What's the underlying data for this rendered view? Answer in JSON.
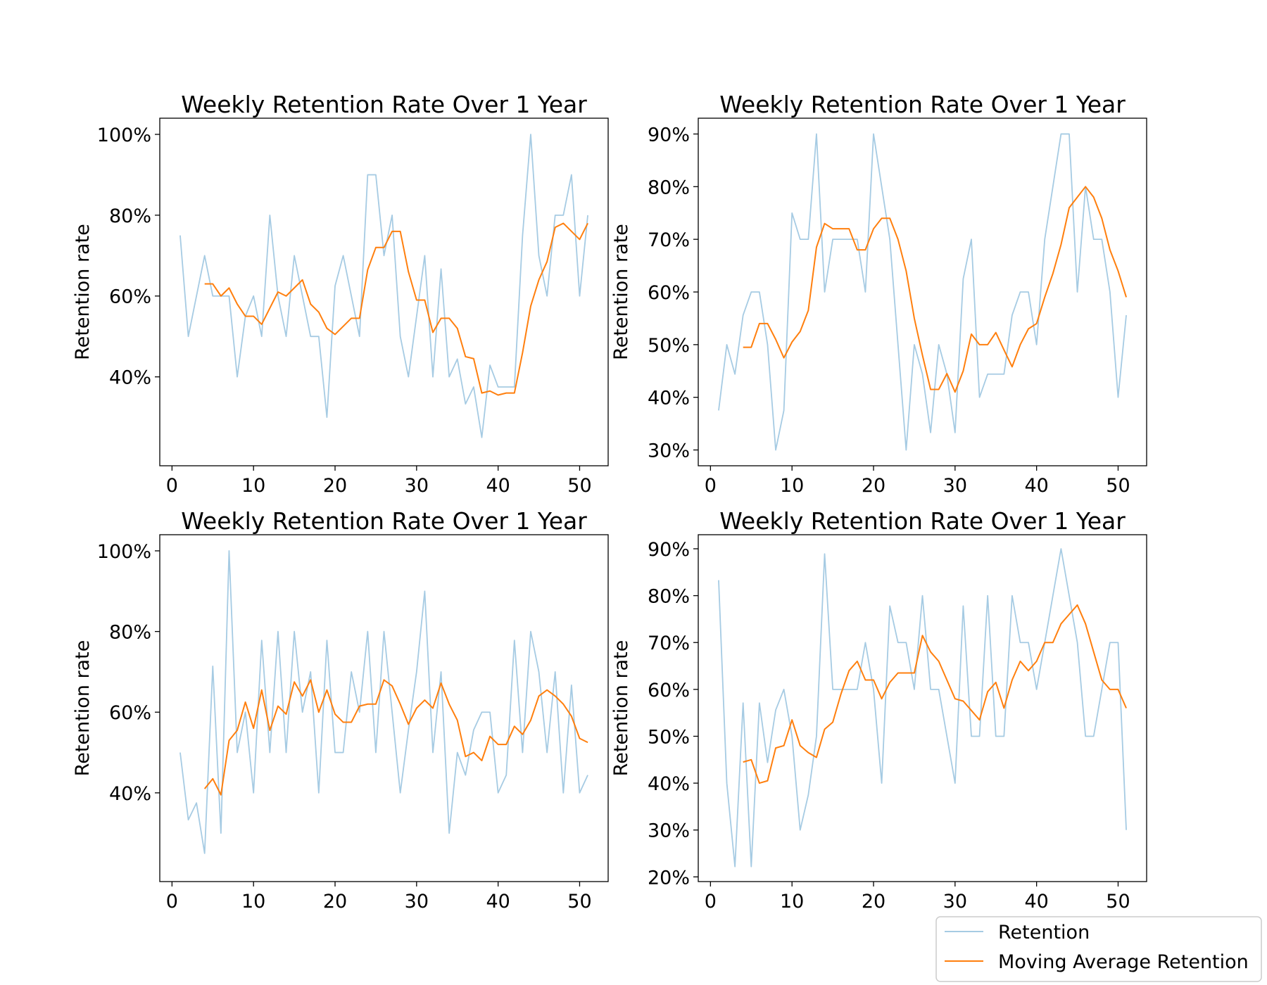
{
  "colors": {
    "retention": "#a6cbe3",
    "moving_average": "#ff7f0e",
    "axes": "#000000",
    "legend_border": "#cccccc"
  },
  "legend": {
    "placement": "lower-right",
    "entries": [
      "Retention",
      "Moving Average Retention"
    ]
  },
  "chart_data": [
    {
      "type": "line",
      "title": "Weekly Retention Rate Over 1 Year",
      "xlabel": "",
      "ylabel": "Retention rate",
      "xlim": [
        -1.5,
        53.5
      ],
      "ylim": [
        0.18,
        1.04
      ],
      "xticks": [
        0,
        10,
        20,
        30,
        40,
        50
      ],
      "yticks": [
        0.4,
        0.6,
        0.8,
        1.0
      ],
      "ytick_labels": [
        "40%",
        "60%",
        "80%",
        "100%"
      ],
      "grid": false,
      "x": [
        1,
        2,
        3,
        4,
        5,
        6,
        7,
        8,
        9,
        10,
        11,
        12,
        13,
        14,
        15,
        16,
        17,
        18,
        19,
        20,
        21,
        22,
        23,
        24,
        25,
        26,
        27,
        28,
        29,
        30,
        31,
        32,
        33,
        34,
        35,
        36,
        37,
        38,
        39,
        40,
        41,
        42,
        43,
        44,
        45,
        46,
        47,
        48,
        49,
        50,
        51
      ],
      "series": [
        {
          "name": "Retention",
          "values": [
            0.75,
            0.5,
            0.6,
            0.7,
            0.6,
            0.6,
            0.6,
            0.4,
            0.55,
            0.6,
            0.5,
            0.8,
            0.6,
            0.5,
            0.7,
            0.6,
            0.5,
            0.5,
            0.3,
            0.625,
            0.7,
            0.6,
            0.5,
            0.9,
            0.9,
            0.7,
            0.8,
            0.5,
            0.4,
            0.55,
            0.7,
            0.4,
            0.667,
            0.4,
            0.444,
            0.333,
            0.375,
            0.25,
            0.429,
            0.375,
            0.375,
            0.375,
            0.75,
            1.0,
            0.7,
            0.6,
            0.8,
            0.8,
            0.9,
            0.6,
            0.8
          ]
        },
        {
          "name": "Moving Average Retention",
          "values": [
            null,
            null,
            null,
            0.63,
            0.63,
            0.6,
            0.62,
            0.58,
            0.55,
            0.55,
            0.53,
            0.57,
            0.61,
            0.6,
            0.62,
            0.64,
            0.58,
            0.56,
            0.52,
            0.505,
            0.525,
            0.545,
            0.545,
            0.665,
            0.72,
            0.72,
            0.76,
            0.76,
            0.66,
            0.59,
            0.59,
            0.51,
            0.545,
            0.545,
            0.52,
            0.45,
            0.445,
            0.36,
            0.365,
            0.355,
            0.36,
            0.36,
            0.46,
            0.575,
            0.64,
            0.685,
            0.77,
            0.78,
            0.76,
            0.74,
            0.78
          ]
        }
      ]
    },
    {
      "type": "line",
      "title": "Weekly Retention Rate Over 1 Year",
      "xlabel": "",
      "ylabel": "Retention rate",
      "xlim": [
        -1.5,
        53.5
      ],
      "ylim": [
        0.27,
        0.93
      ],
      "xticks": [
        0,
        10,
        20,
        30,
        40,
        50
      ],
      "yticks": [
        0.3,
        0.4,
        0.5,
        0.6,
        0.7,
        0.8,
        0.9
      ],
      "ytick_labels": [
        "30%",
        "40%",
        "50%",
        "60%",
        "70%",
        "80%",
        "90%"
      ],
      "grid": false,
      "x": [
        1,
        2,
        3,
        4,
        5,
        6,
        7,
        8,
        9,
        10,
        11,
        12,
        13,
        14,
        15,
        16,
        17,
        18,
        19,
        20,
        21,
        22,
        23,
        24,
        25,
        26,
        27,
        28,
        29,
        30,
        31,
        32,
        33,
        34,
        35,
        36,
        37,
        38,
        39,
        40,
        41,
        42,
        43,
        44,
        45,
        46,
        47,
        48,
        49,
        50,
        51
      ],
      "series": [
        {
          "name": "Retention",
          "values": [
            0.375,
            0.5,
            0.444,
            0.556,
            0.6,
            0.6,
            0.5,
            0.3,
            0.375,
            0.75,
            0.7,
            0.7,
            0.9,
            0.6,
            0.7,
            0.7,
            0.7,
            0.7,
            0.6,
            0.9,
            0.8,
            0.7,
            0.5,
            0.3,
            0.5,
            0.444,
            0.333,
            0.5,
            0.444,
            0.333,
            0.625,
            0.7,
            0.4,
            0.444,
            0.444,
            0.444,
            0.556,
            0.6,
            0.6,
            0.5,
            0.7,
            0.8,
            0.9,
            0.9,
            0.6,
            0.8,
            0.7,
            0.7,
            0.6,
            0.4,
            0.556
          ]
        },
        {
          "name": "Moving Average Retention",
          "values": [
            null,
            null,
            null,
            0.495,
            0.495,
            0.54,
            0.54,
            0.51,
            0.475,
            0.505,
            0.525,
            0.565,
            0.685,
            0.73,
            0.72,
            0.72,
            0.72,
            0.68,
            0.68,
            0.72,
            0.74,
            0.74,
            0.7,
            0.64,
            0.55,
            0.48,
            0.415,
            0.415,
            0.445,
            0.41,
            0.45,
            0.52,
            0.5,
            0.5,
            0.523,
            0.49,
            0.458,
            0.5,
            0.53,
            0.54,
            0.59,
            0.635,
            0.69,
            0.76,
            0.78,
            0.8,
            0.78,
            0.74,
            0.68,
            0.64,
            0.59
          ]
        }
      ]
    },
    {
      "type": "line",
      "title": "Weekly Retention Rate Over 1 Year",
      "xlabel": "",
      "ylabel": "Retention rate",
      "xlim": [
        -1.5,
        53.5
      ],
      "ylim": [
        0.18,
        1.04
      ],
      "xticks": [
        0,
        10,
        20,
        30,
        40,
        50
      ],
      "yticks": [
        0.4,
        0.6,
        0.8,
        1.0
      ],
      "ytick_labels": [
        "40%",
        "60%",
        "80%",
        "100%"
      ],
      "grid": false,
      "x": [
        1,
        2,
        3,
        4,
        5,
        6,
        7,
        8,
        9,
        10,
        11,
        12,
        13,
        14,
        15,
        16,
        17,
        18,
        19,
        20,
        21,
        22,
        23,
        24,
        25,
        26,
        27,
        28,
        29,
        30,
        31,
        32,
        33,
        34,
        35,
        36,
        37,
        38,
        39,
        40,
        41,
        42,
        43,
        44,
        45,
        46,
        47,
        48,
        49,
        50,
        51
      ],
      "series": [
        {
          "name": "Retention",
          "values": [
            0.5,
            0.333,
            0.375,
            0.25,
            0.714,
            0.3,
            1.0,
            0.5,
            0.6,
            0.4,
            0.778,
            0.5,
            0.8,
            0.5,
            0.8,
            0.6,
            0.7,
            0.4,
            0.778,
            0.5,
            0.5,
            0.7,
            0.6,
            0.8,
            0.5,
            0.8,
            0.6,
            0.4,
            0.556,
            0.7,
            0.9,
            0.5,
            0.7,
            0.3,
            0.5,
            0.444,
            0.556,
            0.6,
            0.6,
            0.4,
            0.444,
            0.778,
            0.5,
            0.8,
            0.7,
            0.5,
            0.7,
            0.4,
            0.667,
            0.4,
            0.444
          ]
        },
        {
          "name": "Moving Average Retention",
          "values": [
            null,
            null,
            null,
            0.41,
            0.435,
            0.395,
            0.53,
            0.555,
            0.625,
            0.56,
            0.655,
            0.555,
            0.615,
            0.595,
            0.675,
            0.64,
            0.68,
            0.6,
            0.655,
            0.595,
            0.575,
            0.575,
            0.615,
            0.62,
            0.62,
            0.68,
            0.665,
            0.62,
            0.57,
            0.61,
            0.63,
            0.61,
            0.672,
            0.62,
            0.58,
            0.49,
            0.5,
            0.48,
            0.54,
            0.52,
            0.52,
            0.565,
            0.545,
            0.58,
            0.64,
            0.655,
            0.64,
            0.62,
            0.59,
            0.535,
            0.525
          ]
        }
      ]
    },
    {
      "type": "line",
      "title": "Weekly Retention Rate Over 1 Year",
      "xlabel": "",
      "ylabel": "Retention rate",
      "xlim": [
        -1.5,
        53.5
      ],
      "ylim": [
        0.19,
        0.93
      ],
      "xticks": [
        0,
        10,
        20,
        30,
        40,
        50
      ],
      "yticks": [
        0.2,
        0.3,
        0.4,
        0.5,
        0.6,
        0.7,
        0.8,
        0.9
      ],
      "ytick_labels": [
        "20%",
        "30%",
        "40%",
        "50%",
        "60%",
        "70%",
        "80%",
        "90%"
      ],
      "grid": false,
      "x": [
        1,
        2,
        3,
        4,
        5,
        6,
        7,
        8,
        9,
        10,
        11,
        12,
        13,
        14,
        15,
        16,
        17,
        18,
        19,
        20,
        21,
        22,
        23,
        24,
        25,
        26,
        27,
        28,
        29,
        30,
        31,
        32,
        33,
        34,
        35,
        36,
        37,
        38,
        39,
        40,
        41,
        42,
        43,
        44,
        45,
        46,
        47,
        48,
        49,
        50,
        51
      ],
      "series": [
        {
          "name": "Retention",
          "values": [
            0.833,
            0.4,
            0.222,
            0.571,
            0.222,
            0.571,
            0.444,
            0.556,
            0.6,
            0.5,
            0.3,
            0.375,
            0.5,
            0.889,
            0.6,
            0.6,
            0.6,
            0.6,
            0.7,
            0.6,
            0.4,
            0.778,
            0.7,
            0.7,
            0.6,
            0.8,
            0.6,
            0.6,
            0.5,
            0.4,
            0.778,
            0.5,
            0.5,
            0.8,
            0.5,
            0.5,
            0.8,
            0.7,
            0.7,
            0.6,
            0.7,
            0.8,
            0.9,
            0.8,
            0.7,
            0.5,
            0.5,
            0.6,
            0.7,
            0.7,
            0.3
          ]
        },
        {
          "name": "Moving Average Retention",
          "values": [
            null,
            null,
            null,
            0.445,
            0.45,
            0.4,
            0.405,
            0.475,
            0.48,
            0.535,
            0.48,
            0.465,
            0.455,
            0.515,
            0.53,
            0.59,
            0.64,
            0.66,
            0.62,
            0.62,
            0.58,
            0.615,
            0.635,
            0.635,
            0.635,
            0.715,
            0.68,
            0.66,
            0.62,
            0.58,
            0.575,
            0.555,
            0.535,
            0.595,
            0.615,
            0.56,
            0.62,
            0.66,
            0.64,
            0.66,
            0.7,
            0.7,
            0.74,
            0.76,
            0.78,
            0.74,
            0.68,
            0.62,
            0.6,
            0.6,
            0.56
          ]
        }
      ]
    }
  ]
}
